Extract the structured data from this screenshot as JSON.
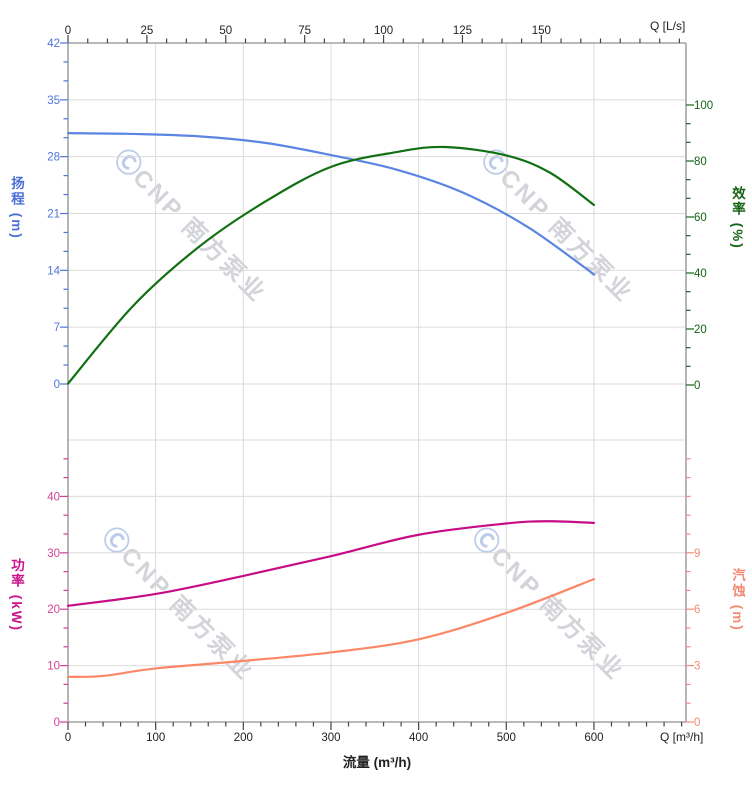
{
  "watermark": {
    "logo": "Ⓒ",
    "text": "CNP 南方泵业"
  },
  "chart_data": {
    "type": "line",
    "grid": true,
    "x_axis_bottom": {
      "title": "流量 (m³/h)",
      "corner_label": "Q [m³/h]",
      "min": 0,
      "max": 600,
      "major_ticks": [
        0,
        100,
        200,
        300,
        400,
        500,
        600
      ],
      "minor_step": 20
    },
    "panels": [
      {
        "name": "head-efficiency",
        "x_axis_top": {
          "label": "Q [L/s]",
          "major_ticks": [
            0,
            25,
            50,
            75,
            100,
            125,
            150
          ],
          "minor_step": 6.25,
          "m3h_per_Ls": 3.6
        },
        "left_axis": {
          "title": "扬程 (m)",
          "min": 0,
          "max": 42,
          "major_step": 7,
          "tick_labels": [
            0,
            7,
            14,
            21,
            28,
            35,
            42
          ],
          "color": "#4f74dc"
        },
        "right_axis": {
          "title": "效率 (%)",
          "min": 0,
          "max": 100,
          "major_step": 20,
          "tick_labels": [
            0,
            20,
            40,
            60,
            80,
            100
          ],
          "color": "#156515"
        },
        "series": [
          {
            "name": "扬程",
            "axis": "left",
            "color": "#5b85e3",
            "points": [
              [
                0,
                30.9
              ],
              [
                75,
                30.8
              ],
              [
                150,
                30.5
              ],
              [
                225,
                29.7
              ],
              [
                300,
                28.2
              ],
              [
                375,
                26.4
              ],
              [
                450,
                23.6
              ],
              [
                525,
                19.3
              ],
              [
                600,
                13.5
              ]
            ]
          },
          {
            "name": "效率",
            "axis": "right",
            "color": "#117011",
            "points": [
              [
                0,
                0.5
              ],
              [
                75,
                28.5
              ],
              [
                150,
                49.5
              ],
              [
                225,
                65.5
              ],
              [
                300,
                77.9
              ],
              [
                375,
                83.2
              ],
              [
                430,
                85.0
              ],
              [
                500,
                82.0
              ],
              [
                550,
                75.8
              ],
              [
                600,
                64.3
              ]
            ]
          }
        ]
      },
      {
        "name": "power-npsh",
        "left_axis": {
          "title": "功率 (kW)",
          "min": 0,
          "max": 50,
          "major_step": 10,
          "tick_labels": [
            0,
            10,
            20,
            30,
            40
          ],
          "color": "#d23f97"
        },
        "right_axis": {
          "title": "汽蚀 (m)",
          "min": 0,
          "max": 15,
          "major_step": 3,
          "tick_labels": [
            0,
            3,
            6,
            9
          ],
          "color": "#f28b76"
        },
        "series": [
          {
            "name": "功率",
            "axis": "left",
            "color": "#c60d86",
            "points": [
              [
                0,
                20.6
              ],
              [
                100,
                22.7
              ],
              [
                200,
                25.9
              ],
              [
                300,
                29.4
              ],
              [
                400,
                33.2
              ],
              [
                500,
                35.2
              ],
              [
                550,
                35.6
              ],
              [
                600,
                35.3
              ]
            ]
          },
          {
            "name": "汽蚀",
            "axis": "right",
            "color": "#fb8766",
            "points": [
              [
                0,
                2.4
              ],
              [
                40,
                2.45
              ],
              [
                100,
                2.85
              ],
              [
                200,
                3.25
              ],
              [
                300,
                3.7
              ],
              [
                400,
                4.4
              ],
              [
                500,
                5.8
              ],
              [
                600,
                7.6
              ]
            ]
          }
        ]
      }
    ]
  }
}
